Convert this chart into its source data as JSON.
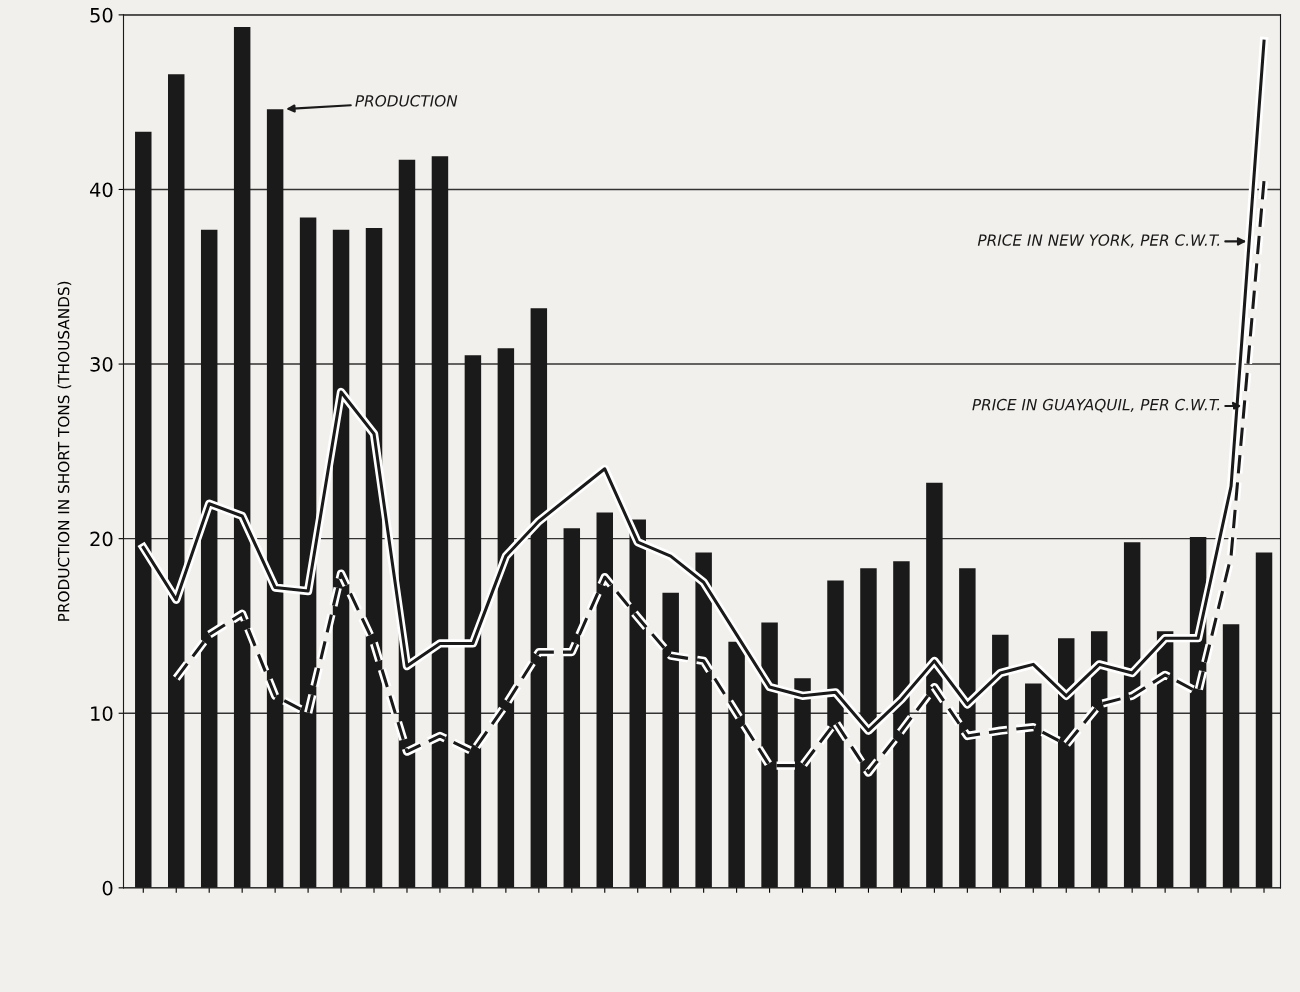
{
  "chart_data": {
    "type": "bar",
    "ylabel": "PRODUCTION IN SHORT TONS (THOUSANDS)",
    "categories": [
      null,
      null,
      null,
      null,
      null,
      null,
      null,
      null,
      null,
      null,
      null,
      null,
      null,
      null,
      null,
      null,
      null,
      null,
      null,
      null,
      null,
      null,
      null,
      null,
      null,
      null,
      null,
      null,
      null,
      null,
      null,
      null,
      null,
      null,
      null
    ],
    "series": [
      {
        "name": "PRODUCTION",
        "color": "#1a1a1a",
        "values": [
          43.3,
          46.6,
          37.7,
          49.3,
          44.6,
          38.4,
          37.7,
          37.8,
          41.7,
          41.9,
          30.5,
          30.9,
          33.2,
          20.6,
          21.5,
          21.1,
          16.9,
          19.2,
          14.1,
          15.2,
          12.0,
          17.6,
          18.3,
          18.7,
          23.2,
          18.3,
          14.5,
          11.7,
          14.3,
          14.7,
          19.8,
          14.7,
          20.1,
          15.1,
          19.2
        ]
      },
      {
        "name": "PRICE IN NEW YORK, PER C.W.T.",
        "type": "line",
        "line_style": "solid",
        "color": "#1a1a1a",
        "values": [
          19.5,
          16.5,
          22,
          21.3,
          17.2,
          17,
          28.4,
          26,
          12.7,
          14,
          14,
          19,
          21,
          22.5,
          24,
          19.8,
          19,
          17.5,
          14.5,
          11.5,
          11,
          11.2,
          9,
          10.8,
          13,
          10.5,
          12.3,
          12.8,
          11,
          12.8,
          12.3,
          14.3,
          14.3,
          23,
          48.5
        ]
      },
      {
        "name": "PRICE IN GUAYAQUIL, PER C.W.T.",
        "type": "line",
        "line_style": "dashed",
        "color": "#1a1a1a",
        "values": [
          null,
          12,
          14.5,
          15.7,
          11,
          10,
          18,
          14,
          7.8,
          8.7,
          7.8,
          10.5,
          13.5,
          13.5,
          17.8,
          15.5,
          13.3,
          13,
          10,
          7,
          7,
          9.5,
          6.6,
          9,
          11.5,
          8.7,
          9,
          9.2,
          8.2,
          10.5,
          11,
          12.2,
          11.2,
          19,
          40.5
        ]
      }
    ],
    "ylim": [
      0,
      50
    ],
    "yticks": [
      0,
      10,
      20,
      30,
      40,
      50
    ],
    "grid": "y",
    "legend": "right"
  }
}
